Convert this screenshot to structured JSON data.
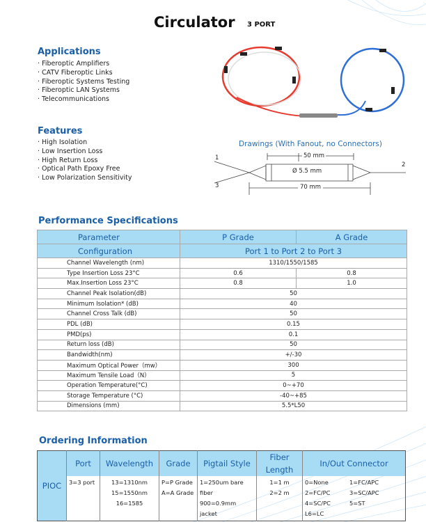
{
  "title": "Circulator",
  "subtitle": "3 PORT",
  "applications": {
    "heading": "Applications",
    "items": [
      "· Fiberoptic Amplifiers",
      "· CATV Fiberoptic Links",
      "· Fiberoptic Systems Testing",
      "· Fiberoptic LAN Systems",
      "· Telecommunications"
    ]
  },
  "features": {
    "heading": "Features",
    "items": [
      "· High Isolation",
      "· Low Insertion Loss",
      "· High Return Loss",
      "· Optical Path Epoxy Free",
      "· Low Polarization Sensitivity"
    ]
  },
  "drawing": {
    "title": "Drawings (With Fanout, no Connectors)",
    "port1": "1",
    "port2": "2",
    "port3": "3",
    "body_length": "50 mm",
    "diameter": "Ø 5.5 mm",
    "total_length": "70 mm"
  },
  "performance": {
    "heading": "Performance Specifications",
    "header": [
      "Parameter",
      "P Grade",
      "A Grade"
    ],
    "config": [
      "Configuration",
      "Port 1 to Port 2 to Port 3"
    ],
    "rows": [
      [
        "Channel  Wavelength (nm)",
        "1310/1550/1585"
      ],
      [
        "Type Insertion Loss  23°C",
        "0.6",
        "0.8"
      ],
      [
        "Max.Insertion Loss 23°C",
        "0.8",
        "1.0"
      ],
      [
        "Channel Peak Isolation(dB)",
        "50"
      ],
      [
        "Minimum Isolation* (dB)",
        "40"
      ],
      [
        "Channel Cross Talk (dB)",
        "50"
      ],
      [
        "PDL (dB)",
        "0.15"
      ],
      [
        "PMD(ps)",
        "0.1"
      ],
      [
        "Return loss  (dB)",
        "50"
      ],
      [
        "Bandwidth(nm)",
        "+/-30"
      ],
      [
        "Maximum Optical Power（mw）",
        "300"
      ],
      [
        "Maximum Tensile Load（N）",
        "5"
      ],
      [
        "Operation Temperature(°C)",
        "0~+70"
      ],
      [
        "Storage Temperature (°C)",
        "-40~+85"
      ],
      [
        "Dimensions (mm)",
        "5.5*L50"
      ]
    ]
  },
  "ordering": {
    "heading": "Ordering Information",
    "prefix": "PIOC",
    "header": [
      "Port",
      "Wavelength",
      "Grade",
      "Pigtail Style",
      "Fiber Length",
      "In/Out Connector"
    ],
    "port": [
      "3=3 port"
    ],
    "wavelength": [
      "13=1310nm",
      "15=1550nm",
      "16=1585"
    ],
    "grade": [
      "P=P Grade",
      "A=A Grade"
    ],
    "pigtail": [
      "1=250um bare fiber",
      "900=0.9mm jacket"
    ],
    "length": [
      "1=1 m",
      "2=2 m"
    ],
    "connector": [
      "0=None",
      "1=FC/APC",
      "2=FC/PC",
      "3=SC/APC",
      "4=SC/PC",
      "5=ST",
      "L6=LC"
    ]
  },
  "colors": {
    "heading": "#1a5fa8",
    "table_header": "#a8dcf5"
  }
}
